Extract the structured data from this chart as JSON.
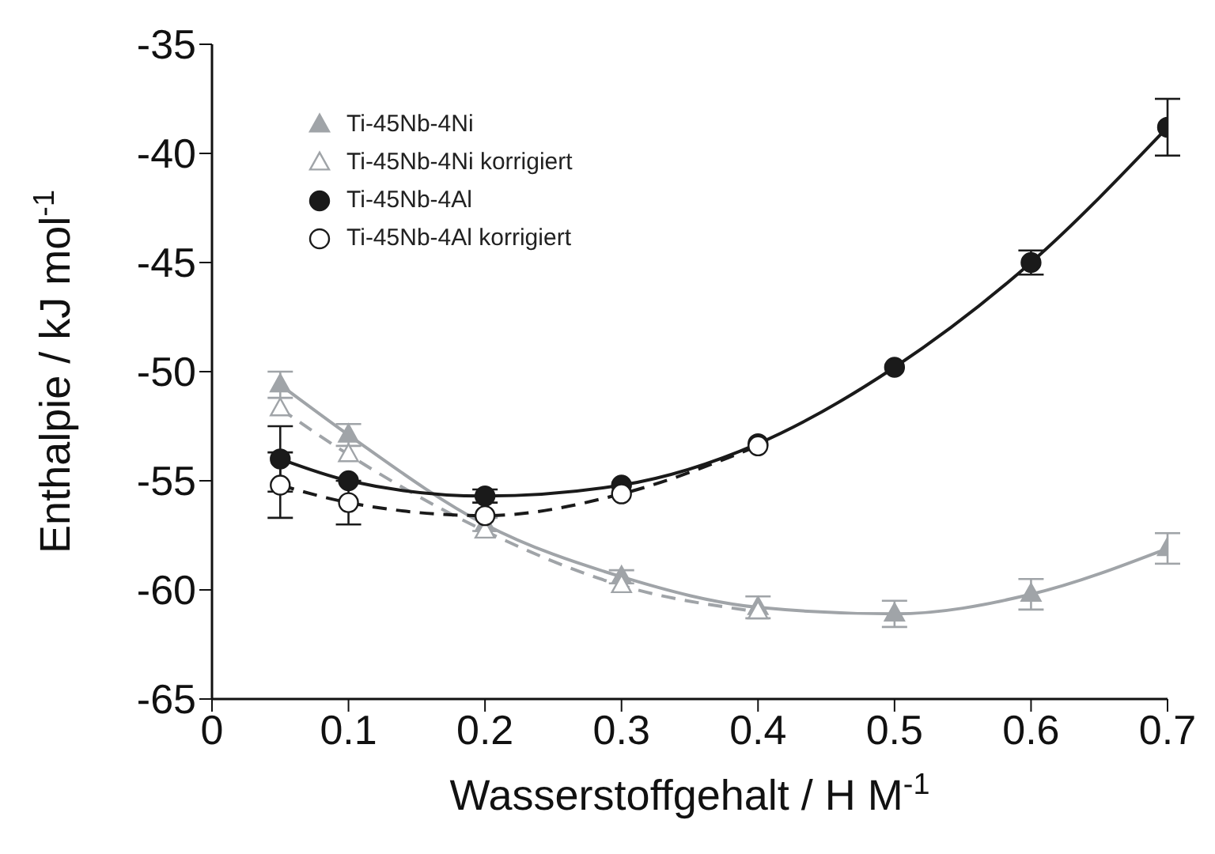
{
  "chart_data": {
    "type": "line",
    "xlabel": "Wasserstoffgehalt / H M$^{-1}$",
    "ylabel": "Enthalpie / kJ mol$^{-1}$",
    "xlim": [
      0,
      0.7
    ],
    "xticks": [
      0,
      0.1,
      0.2,
      0.3,
      0.4,
      0.5,
      0.6,
      0.7
    ],
    "ylim": [
      -65,
      -35
    ],
    "yticks": [
      -65,
      -60,
      -55,
      -50,
      -45,
      -40,
      -35
    ],
    "grid": false,
    "legend": "top left",
    "series": [
      {
        "name": "Ti-45Nb-4Ni",
        "color": "#a0a4a8",
        "marker": "triangle",
        "line_style": "solid",
        "x": [
          0.05,
          0.1,
          0.2,
          0.3,
          0.4,
          0.5,
          0.6,
          0.7
        ],
        "values": [
          -50.6,
          -52.9,
          -57.0,
          -59.4,
          -60.8,
          -61.1,
          -60.2,
          -58.1
        ],
        "errors": [
          0.6,
          0.5,
          0.3,
          0.3,
          0.5,
          0.6,
          0.7,
          0.7
        ]
      },
      {
        "name": "Ti-45Nb-4Ni korrigiert",
        "color": "#a0a4a8",
        "marker": "triangle",
        "line_style": "dashed",
        "x": [
          0.05,
          0.1,
          0.2,
          0.3,
          0.4
        ],
        "values": [
          -51.7,
          -53.8,
          -57.3,
          -59.8,
          -61.0
        ]
      },
      {
        "name": "Ti-45Nb-4Al",
        "color": "#1a1a1a",
        "marker": "circle",
        "line_style": "solid",
        "x": [
          0.05,
          0.1,
          0.2,
          0.3,
          0.4,
          0.5,
          0.6,
          0.7
        ],
        "values": [
          -54.0,
          -55.0,
          -55.7,
          -55.2,
          -53.3,
          -49.8,
          -45.0,
          -38.8
        ],
        "errors": [
          1.5,
          null,
          0.3,
          null,
          null,
          null,
          0.55,
          1.3
        ]
      },
      {
        "name": "Ti-45Nb-4Al korrigiert",
        "color": "#1a1a1a",
        "marker": "circle",
        "line_style": "dashed",
        "x": [
          0.05,
          0.1,
          0.2,
          0.3,
          0.4
        ],
        "values": [
          -55.2,
          -56.0,
          -56.6,
          -55.6,
          -53.4
        ],
        "errors": [
          1.5,
          1.0,
          null,
          null,
          null
        ]
      }
    ]
  }
}
